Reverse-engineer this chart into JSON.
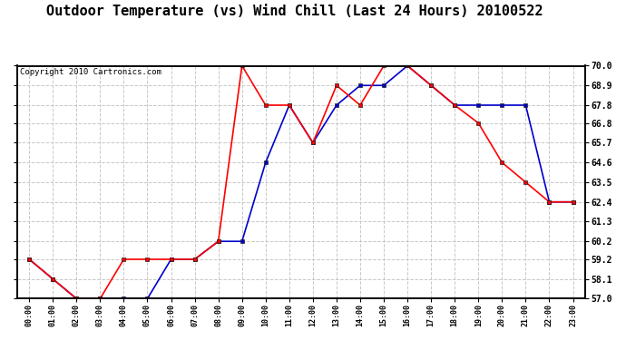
{
  "title": "Outdoor Temperature (vs) Wind Chill (Last 24 Hours) 20100522",
  "copyright": "Copyright 2010 Cartronics.com",
  "x_labels": [
    "00:00",
    "01:00",
    "02:00",
    "03:00",
    "04:00",
    "05:00",
    "06:00",
    "07:00",
    "08:00",
    "09:00",
    "10:00",
    "11:00",
    "12:00",
    "13:00",
    "14:00",
    "15:00",
    "16:00",
    "17:00",
    "18:00",
    "19:00",
    "20:00",
    "21:00",
    "22:00",
    "23:00"
  ],
  "temp_red": [
    59.2,
    58.1,
    57.0,
    57.0,
    59.2,
    59.2,
    59.2,
    59.2,
    60.2,
    70.0,
    67.8,
    67.8,
    65.7,
    68.9,
    67.8,
    70.0,
    70.0,
    68.9,
    67.8,
    66.8,
    64.6,
    63.5,
    62.4,
    62.4
  ],
  "wind_chill_blue": [
    59.2,
    58.1,
    57.0,
    57.0,
    57.0,
    57.0,
    59.2,
    59.2,
    60.2,
    60.2,
    64.6,
    67.8,
    65.7,
    67.8,
    68.9,
    68.9,
    70.0,
    68.9,
    67.8,
    67.8,
    67.8,
    67.8,
    62.4,
    62.4
  ],
  "ylim": [
    57.0,
    70.0
  ],
  "yticks": [
    57.0,
    58.1,
    59.2,
    60.2,
    61.3,
    62.4,
    63.5,
    64.6,
    65.7,
    66.8,
    67.8,
    68.9,
    70.0
  ],
  "red_color": "#FF0000",
  "blue_color": "#0000CC",
  "bg_color": "#FFFFFF",
  "plot_bg_color": "#FFFFFF",
  "grid_color": "#C8C8C8",
  "title_fontsize": 11,
  "copyright_fontsize": 6.5,
  "figwidth": 6.9,
  "figheight": 3.75,
  "dpi": 100
}
